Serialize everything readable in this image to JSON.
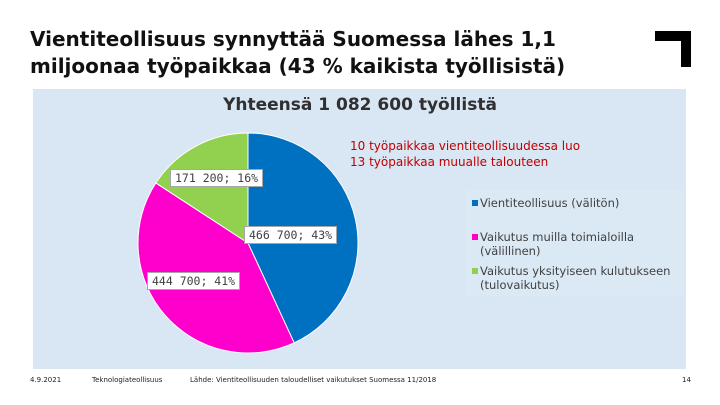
{
  "slide": {
    "title_line1": "Vientiteollisuus synnyttää Suomessa lähes 1,1",
    "title_line2": "miljoonaa työpaikkaa (43 % kaikista työllisistä)"
  },
  "annotation": {
    "line1": "10 työpaikkaa vientiteollisuudessa luo",
    "line2": "13 työpaikkaa muualle talouteen"
  },
  "footer": {
    "date": "4.9.2021",
    "org": "Teknologiateollisuus",
    "source": "Lähde: Vientiteollisuuden taloudelliset vaikutukset Suomessa 11/2018",
    "page": "14"
  },
  "logo": {
    "icon": "corner-bracket-logo",
    "color": "#000000"
  },
  "chart_data": {
    "type": "pie",
    "title": "Yhteensä 1 082 600 työllistä",
    "slices": [
      {
        "name": "Vientiteollisuus (välitön)",
        "value": 466700,
        "label": "466 700; 43%",
        "color": "#0070c0"
      },
      {
        "name": "Vaikutus muilla toimialoilla (välillinen)",
        "value": 444700,
        "label": "444 700; 41%",
        "color": "#ff00cc"
      },
      {
        "name": "Vaikutus yksityiseen kulutukseen (tulovaikutus)",
        "value": 171200,
        "label": "171 200; 16%",
        "color": "#92d050"
      }
    ],
    "legend_lines": [
      [
        "Vientiteollisuus (välitön)"
      ],
      [
        "Vaikutus muilla toimialoilla",
        "(välillinen)"
      ],
      [
        "Vaikutus yksityiseen kulutukseen",
        "(tulovaikutus)"
      ]
    ],
    "legend_position": "right",
    "start_angle": "top, clockwise"
  }
}
